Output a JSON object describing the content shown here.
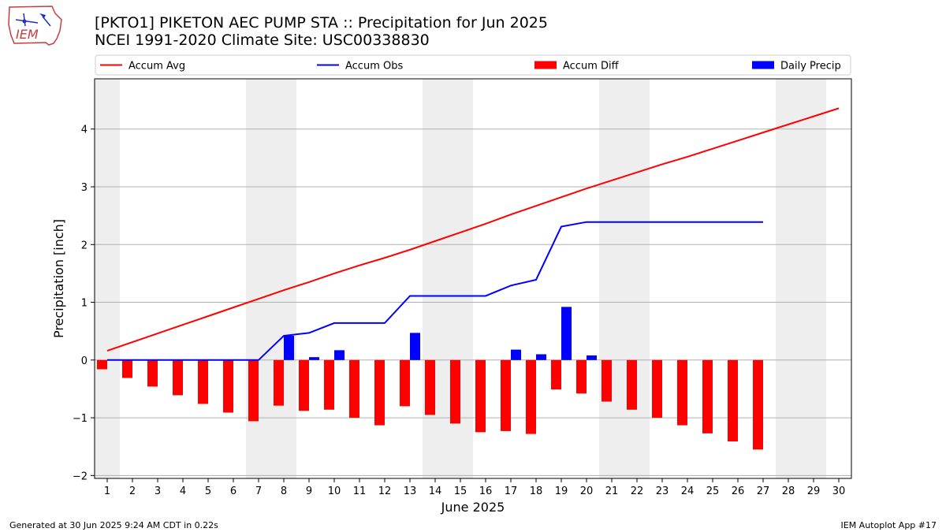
{
  "header": {
    "title_line1": "[PKTO1] PIKETON AEC PUMP STA :: Precipitation for Jun 2025",
    "title_line2": "NCEI 1991-2020 Climate Site: USC00338830"
  },
  "logo": {
    "text": "IEM"
  },
  "footer": {
    "left": "Generated at 30 Jun 2025 9:24 AM CDT in 0.22s",
    "right": "IEM Autoplot App #17"
  },
  "colors": {
    "avg": "#ff0000",
    "obs": "#0000ff",
    "diff": "#ff0000",
    "daily": "#0000ff",
    "weekend_shade": "#eeeeee",
    "grid": "#b0b0b0"
  },
  "chart_data": {
    "type": "line",
    "title": "[PKTO1] PIKETON AEC PUMP STA :: Precipitation for Jun 2025",
    "subtitle": "NCEI 1991-2020 Climate Site: USC00338830",
    "xlabel": "June 2025",
    "ylabel": "Precipitation [inch]",
    "xlim": [
      0.5,
      30.5
    ],
    "ylim": [
      -2.05,
      4.87
    ],
    "grid": true,
    "legend_position": "top",
    "x_ticks": [
      1,
      2,
      3,
      4,
      5,
      6,
      7,
      8,
      9,
      10,
      11,
      12,
      13,
      14,
      15,
      16,
      17,
      18,
      19,
      20,
      21,
      22,
      23,
      24,
      25,
      26,
      27,
      28,
      29,
      30
    ],
    "y_ticks": [
      -2,
      -1,
      0,
      1,
      2,
      3,
      4
    ],
    "y_tick_labels": [
      "−2",
      "−1",
      "0",
      "1",
      "2",
      "3",
      "4"
    ],
    "shaded_days": [
      1,
      7,
      8,
      14,
      15,
      21,
      22,
      28,
      29
    ],
    "series": [
      {
        "name": "Accum Avg",
        "kind": "line",
        "color": "#ff0000",
        "x": [
          1,
          2,
          3,
          4,
          5,
          6,
          7,
          8,
          9,
          10,
          11,
          12,
          13,
          14,
          15,
          16,
          17,
          18,
          19,
          20,
          21,
          22,
          23,
          24,
          25,
          26,
          27,
          28,
          29,
          30
        ],
        "values": [
          0.16,
          0.31,
          0.46,
          0.61,
          0.76,
          0.91,
          1.06,
          1.21,
          1.35,
          1.5,
          1.64,
          1.77,
          1.91,
          2.06,
          2.21,
          2.36,
          2.52,
          2.67,
          2.82,
          2.97,
          3.11,
          3.25,
          3.39,
          3.52,
          3.66,
          3.8,
          3.94,
          4.08,
          4.22,
          4.36
        ]
      },
      {
        "name": "Accum Obs",
        "kind": "line",
        "color": "#0000ff",
        "x": [
          1,
          2,
          3,
          4,
          5,
          6,
          7,
          8,
          9,
          10,
          11,
          12,
          13,
          14,
          15,
          16,
          17,
          18,
          19,
          20,
          21,
          22,
          23,
          24,
          25,
          26,
          27
        ],
        "values": [
          0,
          0,
          0,
          0,
          0,
          0,
          0,
          0.42,
          0.47,
          0.64,
          0.64,
          0.64,
          1.11,
          1.11,
          1.11,
          1.11,
          1.29,
          1.39,
          2.31,
          2.39,
          2.39,
          2.39,
          2.39,
          2.39,
          2.39,
          2.39,
          2.39
        ]
      },
      {
        "name": "Accum Diff",
        "kind": "bar",
        "color": "#ff0000",
        "x": [
          1,
          2,
          3,
          4,
          5,
          6,
          7,
          8,
          9,
          10,
          11,
          12,
          13,
          14,
          15,
          16,
          17,
          18,
          19,
          20,
          21,
          22,
          23,
          24,
          25,
          26,
          27
        ],
        "values": [
          -0.16,
          -0.31,
          -0.46,
          -0.61,
          -0.76,
          -0.91,
          -1.06,
          -0.79,
          -0.88,
          -0.86,
          -1.0,
          -1.13,
          -0.8,
          -0.95,
          -1.1,
          -1.25,
          -1.23,
          -1.28,
          -0.51,
          -0.58,
          -0.72,
          -0.86,
          -1.0,
          -1.13,
          -1.27,
          -1.41,
          -1.55
        ]
      },
      {
        "name": "Daily Precip",
        "kind": "bar",
        "color": "#0000ff",
        "x": [
          8,
          9,
          10,
          13,
          17,
          18,
          19,
          20
        ],
        "values": [
          0.42,
          0.05,
          0.17,
          0.47,
          0.18,
          0.1,
          0.92,
          0.08
        ]
      }
    ]
  }
}
